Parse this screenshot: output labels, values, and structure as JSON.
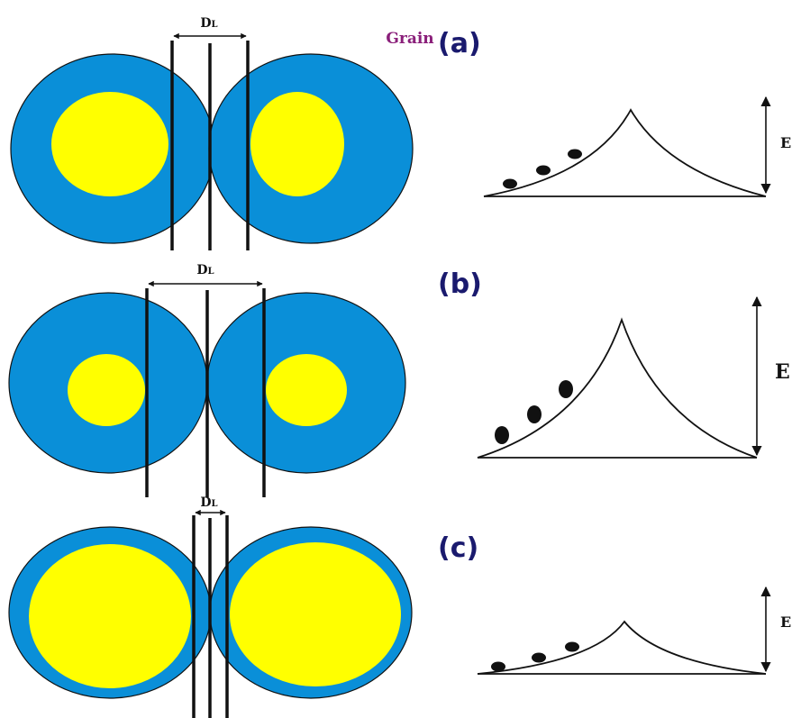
{
  "grain_label": "Grain",
  "panels": [
    {
      "label": "(a)",
      "dl_label": {
        "symbol": "D",
        "subscript": "L"
      },
      "energy_label": "E"
    },
    {
      "label": "(b)",
      "dl_label": {
        "symbol": "D",
        "subscript": "L"
      },
      "energy_label": "E"
    },
    {
      "label": "(c)",
      "dl_label": {
        "symbol": "D",
        "subscript": "L"
      },
      "energy_label": "E"
    }
  ]
}
